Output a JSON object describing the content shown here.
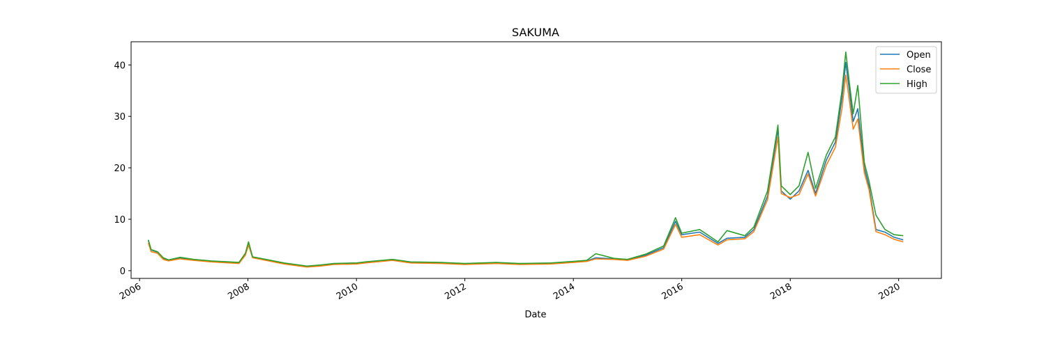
{
  "chart_data": {
    "type": "line",
    "title": "SAKUMA",
    "xlabel": "Date",
    "ylabel": "",
    "x_ticks": [
      "2006",
      "2008",
      "2010",
      "2012",
      "2014",
      "2016",
      "2018",
      "2020"
    ],
    "y_ticks": [
      0,
      10,
      20,
      30,
      40
    ],
    "xlim": [
      "2005-11-05",
      "2020-10-15"
    ],
    "ylim": [
      -1.5,
      44.5
    ],
    "grid": false,
    "legend_position": "top-right",
    "series": [
      {
        "name": "Open",
        "color": "#1f77b4",
        "points": [
          [
            "2006-03-01",
            5.9
          ],
          [
            "2006-03-20",
            4.0
          ],
          [
            "2006-05-01",
            3.6
          ],
          [
            "2006-06-10",
            2.4
          ],
          [
            "2006-07-15",
            2.0
          ],
          [
            "2006-10-01",
            2.5
          ],
          [
            "2007-01-01",
            2.1
          ],
          [
            "2007-05-01",
            1.8
          ],
          [
            "2007-09-01",
            1.6
          ],
          [
            "2007-11-01",
            1.5
          ],
          [
            "2007-12-15",
            3.2
          ],
          [
            "2008-01-05",
            5.3
          ],
          [
            "2008-02-01",
            2.6
          ],
          [
            "2008-05-01",
            2.1
          ],
          [
            "2008-09-01",
            1.4
          ],
          [
            "2009-02-01",
            0.8
          ],
          [
            "2009-05-01",
            1.0
          ],
          [
            "2009-08-01",
            1.3
          ],
          [
            "2010-01-01",
            1.4
          ],
          [
            "2010-03-01",
            1.6
          ],
          [
            "2010-09-01",
            2.1
          ],
          [
            "2011-01-01",
            1.6
          ],
          [
            "2011-08-01",
            1.5
          ],
          [
            "2012-01-01",
            1.3
          ],
          [
            "2012-08-01",
            1.5
          ],
          [
            "2013-01-01",
            1.3
          ],
          [
            "2013-08-01",
            1.4
          ],
          [
            "2014-01-01",
            1.7
          ],
          [
            "2014-04-01",
            1.9
          ],
          [
            "2014-06-01",
            2.5
          ],
          [
            "2014-10-01",
            2.3
          ],
          [
            "2015-01-01",
            2.1
          ],
          [
            "2015-05-01",
            3.0
          ],
          [
            "2015-09-01",
            4.5
          ],
          [
            "2015-11-20",
            9.6
          ],
          [
            "2016-01-01",
            7.0
          ],
          [
            "2016-05-01",
            7.5
          ],
          [
            "2016-09-01",
            5.3
          ],
          [
            "2016-11-01",
            6.3
          ],
          [
            "2017-03-01",
            6.5
          ],
          [
            "2017-05-01",
            8.0
          ],
          [
            "2017-08-01",
            14.5
          ],
          [
            "2017-10-10",
            27.6
          ],
          [
            "2017-11-01",
            15.5
          ],
          [
            "2018-01-01",
            13.9
          ],
          [
            "2018-03-01",
            15.5
          ],
          [
            "2018-05-01",
            19.5
          ],
          [
            "2018-06-20",
            15.0
          ],
          [
            "2018-09-01",
            21.5
          ],
          [
            "2018-11-01",
            25.0
          ],
          [
            "2018-12-15",
            33.5
          ],
          [
            "2019-01-10",
            40.5
          ],
          [
            "2019-02-01",
            35.5
          ],
          [
            "2019-03-01",
            29.0
          ],
          [
            "2019-04-01",
            31.5
          ],
          [
            "2019-05-15",
            20.0
          ],
          [
            "2019-06-15",
            16.5
          ],
          [
            "2019-08-01",
            8.0
          ],
          [
            "2019-10-01",
            7.5
          ],
          [
            "2019-12-01",
            6.5
          ],
          [
            "2020-02-01",
            6.0
          ]
        ]
      },
      {
        "name": "Close",
        "color": "#ff7f0e",
        "points": [
          [
            "2006-03-01",
            5.4
          ],
          [
            "2006-03-20",
            3.7
          ],
          [
            "2006-05-01",
            3.4
          ],
          [
            "2006-06-10",
            2.2
          ],
          [
            "2006-07-15",
            1.9
          ],
          [
            "2006-10-01",
            2.3
          ],
          [
            "2007-01-01",
            2.0
          ],
          [
            "2007-05-01",
            1.7
          ],
          [
            "2007-09-01",
            1.5
          ],
          [
            "2007-11-01",
            1.4
          ],
          [
            "2007-12-15",
            3.0
          ],
          [
            "2008-01-05",
            5.0
          ],
          [
            "2008-02-01",
            2.5
          ],
          [
            "2008-05-01",
            2.0
          ],
          [
            "2008-09-01",
            1.3
          ],
          [
            "2009-02-01",
            0.7
          ],
          [
            "2009-05-01",
            0.9
          ],
          [
            "2009-08-01",
            1.2
          ],
          [
            "2010-01-01",
            1.3
          ],
          [
            "2010-03-01",
            1.5
          ],
          [
            "2010-09-01",
            2.0
          ],
          [
            "2011-01-01",
            1.5
          ],
          [
            "2011-08-01",
            1.4
          ],
          [
            "2012-01-01",
            1.2
          ],
          [
            "2012-08-01",
            1.4
          ],
          [
            "2013-01-01",
            1.2
          ],
          [
            "2013-08-01",
            1.3
          ],
          [
            "2014-01-01",
            1.6
          ],
          [
            "2014-04-01",
            1.8
          ],
          [
            "2014-06-01",
            2.3
          ],
          [
            "2014-10-01",
            2.2
          ],
          [
            "2015-01-01",
            2.0
          ],
          [
            "2015-05-01",
            2.8
          ],
          [
            "2015-09-01",
            4.2
          ],
          [
            "2015-11-20",
            9.0
          ],
          [
            "2016-01-01",
            6.5
          ],
          [
            "2016-05-01",
            7.0
          ],
          [
            "2016-09-01",
            5.0
          ],
          [
            "2016-11-01",
            6.0
          ],
          [
            "2017-03-01",
            6.2
          ],
          [
            "2017-05-01",
            7.6
          ],
          [
            "2017-08-01",
            13.8
          ],
          [
            "2017-10-10",
            26.0
          ],
          [
            "2017-11-01",
            15.0
          ],
          [
            "2018-01-01",
            14.2
          ],
          [
            "2018-03-01",
            14.8
          ],
          [
            "2018-05-01",
            18.8
          ],
          [
            "2018-06-20",
            14.5
          ],
          [
            "2018-09-01",
            20.5
          ],
          [
            "2018-11-01",
            24.0
          ],
          [
            "2018-12-15",
            31.5
          ],
          [
            "2019-01-10",
            38.0
          ],
          [
            "2019-02-01",
            33.5
          ],
          [
            "2019-03-01",
            27.5
          ],
          [
            "2019-04-01",
            29.5
          ],
          [
            "2019-05-15",
            19.0
          ],
          [
            "2019-06-15",
            15.8
          ],
          [
            "2019-08-01",
            7.6
          ],
          [
            "2019-10-01",
            7.0
          ],
          [
            "2019-12-01",
            6.1
          ],
          [
            "2020-02-01",
            5.6
          ]
        ]
      },
      {
        "name": "High",
        "color": "#2ca02c",
        "points": [
          [
            "2006-03-01",
            6.0
          ],
          [
            "2006-03-20",
            4.1
          ],
          [
            "2006-05-01",
            3.7
          ],
          [
            "2006-06-10",
            2.5
          ],
          [
            "2006-07-15",
            2.1
          ],
          [
            "2006-10-01",
            2.6
          ],
          [
            "2007-01-01",
            2.2
          ],
          [
            "2007-05-01",
            1.9
          ],
          [
            "2007-09-01",
            1.7
          ],
          [
            "2007-11-01",
            1.6
          ],
          [
            "2007-12-15",
            3.4
          ],
          [
            "2008-01-05",
            5.6
          ],
          [
            "2008-02-01",
            2.7
          ],
          [
            "2008-05-01",
            2.2
          ],
          [
            "2008-09-01",
            1.5
          ],
          [
            "2009-02-01",
            0.9
          ],
          [
            "2009-05-01",
            1.1
          ],
          [
            "2009-08-01",
            1.4
          ],
          [
            "2010-01-01",
            1.5
          ],
          [
            "2010-03-01",
            1.7
          ],
          [
            "2010-09-01",
            2.2
          ],
          [
            "2011-01-01",
            1.7
          ],
          [
            "2011-08-01",
            1.6
          ],
          [
            "2012-01-01",
            1.4
          ],
          [
            "2012-08-01",
            1.6
          ],
          [
            "2013-01-01",
            1.4
          ],
          [
            "2013-08-01",
            1.5
          ],
          [
            "2014-01-01",
            1.8
          ],
          [
            "2014-04-01",
            2.0
          ],
          [
            "2014-06-01",
            3.3
          ],
          [
            "2014-10-01",
            2.4
          ],
          [
            "2015-01-01",
            2.2
          ],
          [
            "2015-05-01",
            3.2
          ],
          [
            "2015-09-01",
            4.8
          ],
          [
            "2015-11-20",
            10.3
          ],
          [
            "2016-01-01",
            7.3
          ],
          [
            "2016-05-01",
            8.0
          ],
          [
            "2016-09-01",
            5.6
          ],
          [
            "2016-11-01",
            7.8
          ],
          [
            "2017-03-01",
            6.8
          ],
          [
            "2017-05-01",
            8.5
          ],
          [
            "2017-08-01",
            15.5
          ],
          [
            "2017-10-10",
            28.3
          ],
          [
            "2017-11-01",
            16.5
          ],
          [
            "2018-01-01",
            14.8
          ],
          [
            "2018-03-01",
            16.5
          ],
          [
            "2018-05-01",
            23.0
          ],
          [
            "2018-06-20",
            16.0
          ],
          [
            "2018-09-01",
            22.5
          ],
          [
            "2018-11-01",
            26.0
          ],
          [
            "2018-12-15",
            35.0
          ],
          [
            "2019-01-10",
            42.5
          ],
          [
            "2019-02-01",
            37.0
          ],
          [
            "2019-03-01",
            30.5
          ],
          [
            "2019-04-01",
            36.0
          ],
          [
            "2019-05-15",
            21.0
          ],
          [
            "2019-06-15",
            17.5
          ],
          [
            "2019-08-01",
            10.8
          ],
          [
            "2019-10-01",
            8.0
          ],
          [
            "2019-12-01",
            7.0
          ],
          [
            "2020-02-01",
            6.8
          ]
        ]
      }
    ]
  }
}
